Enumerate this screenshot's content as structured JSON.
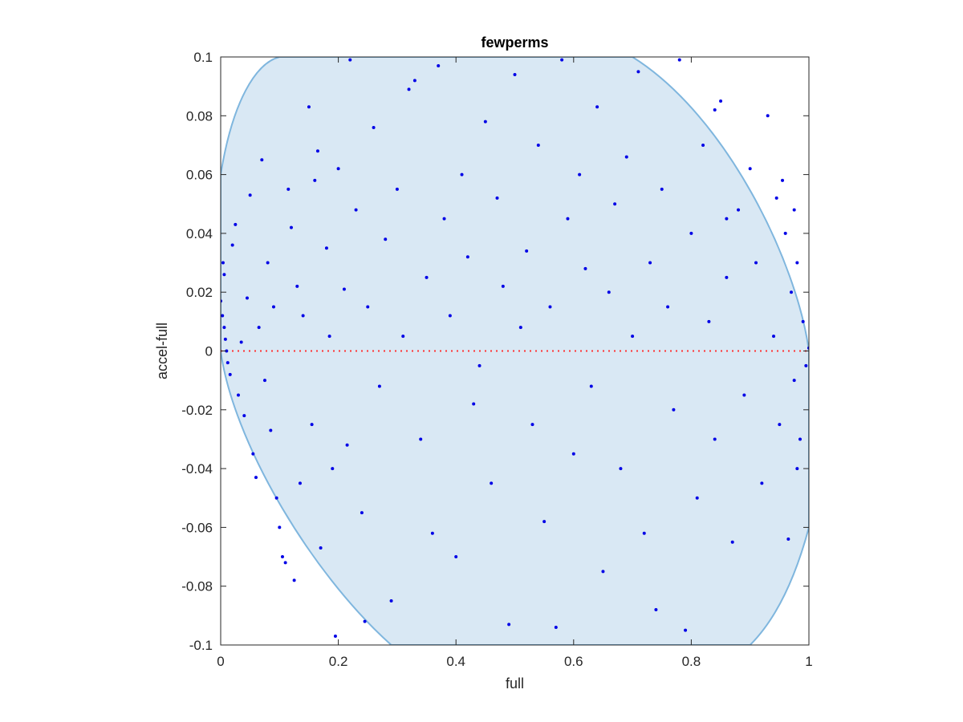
{
  "chart_data": {
    "type": "scatter",
    "title": "fewperms",
    "xlabel": "full",
    "ylabel": "accel-full",
    "xlim": [
      0,
      1
    ],
    "ylim": [
      -0.1,
      0.1
    ],
    "x_ticks": [
      0,
      0.2,
      0.4,
      0.6,
      0.8,
      1
    ],
    "x_tick_labels": [
      "0",
      "0.2",
      "0.4",
      "0.6",
      "0.8",
      "1"
    ],
    "y_ticks": [
      -0.1,
      -0.08,
      -0.06,
      -0.04,
      -0.02,
      0,
      0.02,
      0.04,
      0.06,
      0.08,
      0.1
    ],
    "y_tick_labels": [
      "-0.1",
      "-0.08",
      "-0.06",
      "-0.04",
      "-0.02",
      "0",
      "0.02",
      "0.04",
      "0.06",
      "0.08",
      "0.1"
    ],
    "grid": false,
    "legend": "none",
    "reference_line": {
      "y": 0,
      "style": "dotted",
      "color": "#ff3030"
    },
    "ellipse": {
      "fill": "#d9e8f4",
      "stroke": "#7fb6de",
      "center": [
        0.5,
        0
      ],
      "boundary": [
        [
          0.0,
          0.06
        ],
        [
          0.1,
          0.1
        ],
        [
          0.7,
          0.1
        ],
        [
          1.0,
          0.0
        ],
        [
          1.0,
          -0.06
        ],
        [
          0.9,
          -0.1
        ],
        [
          0.29,
          -0.1
        ],
        [
          0.0,
          0.0
        ]
      ]
    },
    "marker_color": "#0000e6",
    "series": [
      {
        "values": [
          [
            0.0,
            0.017
          ],
          [
            0.003,
            0.012
          ],
          [
            0.006,
            0.008
          ],
          [
            0.008,
            0.004
          ],
          [
            0.01,
            0.0
          ],
          [
            0.012,
            -0.004
          ],
          [
            0.004,
            0.03
          ],
          [
            0.006,
            0.026
          ],
          [
            0.016,
            -0.008
          ],
          [
            0.02,
            0.036
          ],
          [
            0.025,
            0.043
          ],
          [
            0.03,
            -0.015
          ],
          [
            0.035,
            0.003
          ],
          [
            0.04,
            -0.022
          ],
          [
            0.045,
            0.018
          ],
          [
            0.05,
            0.053
          ],
          [
            0.055,
            -0.035
          ],
          [
            0.06,
            -0.043
          ],
          [
            0.065,
            0.008
          ],
          [
            0.07,
            0.065
          ],
          [
            0.075,
            -0.01
          ],
          [
            0.08,
            0.03
          ],
          [
            0.085,
            -0.027
          ],
          [
            0.09,
            0.015
          ],
          [
            0.095,
            -0.05
          ],
          [
            0.1,
            -0.06
          ],
          [
            0.105,
            -0.07
          ],
          [
            0.11,
            -0.072
          ],
          [
            0.115,
            0.055
          ],
          [
            0.12,
            0.042
          ],
          [
            0.125,
            -0.078
          ],
          [
            0.13,
            0.022
          ],
          [
            0.135,
            -0.045
          ],
          [
            0.14,
            0.012
          ],
          [
            0.15,
            0.083
          ],
          [
            0.155,
            -0.025
          ],
          [
            0.16,
            0.058
          ],
          [
            0.165,
            0.068
          ],
          [
            0.17,
            -0.067
          ],
          [
            0.18,
            0.035
          ],
          [
            0.185,
            0.005
          ],
          [
            0.19,
            -0.04
          ],
          [
            0.195,
            -0.097
          ],
          [
            0.2,
            0.062
          ],
          [
            0.21,
            0.021
          ],
          [
            0.215,
            -0.032
          ],
          [
            0.22,
            0.099
          ],
          [
            0.23,
            0.048
          ],
          [
            0.24,
            -0.055
          ],
          [
            0.245,
            -0.092
          ],
          [
            0.25,
            0.015
          ],
          [
            0.26,
            0.076
          ],
          [
            0.27,
            -0.012
          ],
          [
            0.28,
            0.038
          ],
          [
            0.29,
            -0.085
          ],
          [
            0.3,
            0.055
          ],
          [
            0.31,
            0.005
          ],
          [
            0.32,
            0.089
          ],
          [
            0.33,
            0.092
          ],
          [
            0.34,
            -0.03
          ],
          [
            0.35,
            0.025
          ],
          [
            0.36,
            -0.062
          ],
          [
            0.37,
            0.097
          ],
          [
            0.38,
            0.045
          ],
          [
            0.39,
            0.012
          ],
          [
            0.4,
            -0.07
          ],
          [
            0.41,
            0.06
          ],
          [
            0.42,
            0.032
          ],
          [
            0.43,
            -0.018
          ],
          [
            0.44,
            -0.005
          ],
          [
            0.45,
            0.078
          ],
          [
            0.46,
            -0.045
          ],
          [
            0.47,
            0.052
          ],
          [
            0.48,
            0.022
          ],
          [
            0.49,
            -0.093
          ],
          [
            0.5,
            0.094
          ],
          [
            0.51,
            0.008
          ],
          [
            0.52,
            0.034
          ],
          [
            0.53,
            -0.025
          ],
          [
            0.54,
            0.07
          ],
          [
            0.55,
            -0.058
          ],
          [
            0.56,
            0.015
          ],
          [
            0.57,
            -0.094
          ],
          [
            0.58,
            0.099
          ],
          [
            0.59,
            0.045
          ],
          [
            0.6,
            -0.035
          ],
          [
            0.61,
            0.06
          ],
          [
            0.62,
            0.028
          ],
          [
            0.63,
            -0.012
          ],
          [
            0.64,
            0.083
          ],
          [
            0.65,
            -0.075
          ],
          [
            0.66,
            0.02
          ],
          [
            0.67,
            0.05
          ],
          [
            0.68,
            -0.04
          ],
          [
            0.69,
            0.066
          ],
          [
            0.7,
            0.005
          ],
          [
            0.71,
            0.095
          ],
          [
            0.72,
            -0.062
          ],
          [
            0.73,
            0.03
          ],
          [
            0.74,
            -0.088
          ],
          [
            0.75,
            0.055
          ],
          [
            0.76,
            0.015
          ],
          [
            0.77,
            -0.02
          ],
          [
            0.78,
            0.099
          ],
          [
            0.79,
            -0.095
          ],
          [
            0.8,
            0.04
          ],
          [
            0.81,
            -0.05
          ],
          [
            0.82,
            0.07
          ],
          [
            0.83,
            0.01
          ],
          [
            0.84,
            -0.03
          ],
          [
            0.85,
            0.085
          ],
          [
            0.86,
            0.025
          ],
          [
            0.87,
            -0.065
          ],
          [
            0.88,
            0.048
          ],
          [
            0.89,
            -0.015
          ],
          [
            0.9,
            0.062
          ],
          [
            0.91,
            0.03
          ],
          [
            0.92,
            -0.045
          ],
          [
            0.93,
            0.08
          ],
          [
            0.94,
            0.005
          ],
          [
            0.95,
            -0.025
          ],
          [
            0.955,
            0.058
          ],
          [
            0.96,
            0.04
          ],
          [
            0.965,
            -0.064
          ],
          [
            0.97,
            0.02
          ],
          [
            0.975,
            -0.01
          ],
          [
            0.98,
            0.03
          ],
          [
            0.985,
            -0.03
          ],
          [
            0.99,
            0.01
          ],
          [
            0.995,
            -0.005
          ],
          [
            1.0,
            0.001
          ],
          [
            0.975,
            0.048
          ],
          [
            0.98,
            -0.04
          ],
          [
            0.945,
            0.052
          ],
          [
            0.86,
            0.045
          ],
          [
            0.84,
            0.082
          ]
        ]
      }
    ]
  }
}
